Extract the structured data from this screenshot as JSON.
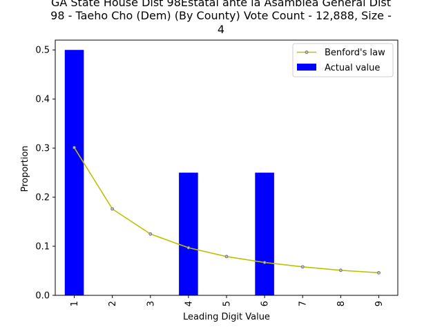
{
  "chart_data": {
    "type": "bar",
    "title_lines": [
      "GA State House Dist 98Estatal ante la Asamblea General Dist",
      "98 - Taeho Cho (Dem) (By County) Vote Count - 12,888, Size -",
      "4"
    ],
    "xlabel": "Leading Digit Value",
    "ylabel": "Proportion",
    "categories": [
      "1",
      "2",
      "3",
      "4",
      "5",
      "6",
      "7",
      "8",
      "9"
    ],
    "x": [
      1,
      2,
      3,
      4,
      5,
      6,
      7,
      8,
      9
    ],
    "ylim": [
      0,
      0.52
    ],
    "yticks": [
      0.0,
      0.1,
      0.2,
      0.3,
      0.4,
      0.5
    ],
    "ytick_labels": [
      "0.0",
      "0.1",
      "0.2",
      "0.3",
      "0.4",
      "0.5"
    ],
    "grid": false,
    "legend_position": "top-right",
    "series": [
      {
        "name": "Benford's law",
        "type": "line",
        "color": "#bfbf00",
        "values": [
          0.301,
          0.176,
          0.125,
          0.097,
          0.079,
          0.067,
          0.058,
          0.051,
          0.046
        ]
      },
      {
        "name": "Actual value",
        "type": "bar",
        "color": "#0000ff",
        "values": [
          0.5,
          0.0,
          0.0,
          0.25,
          0.0,
          0.25,
          0.0,
          0.0,
          0.0
        ]
      }
    ]
  }
}
